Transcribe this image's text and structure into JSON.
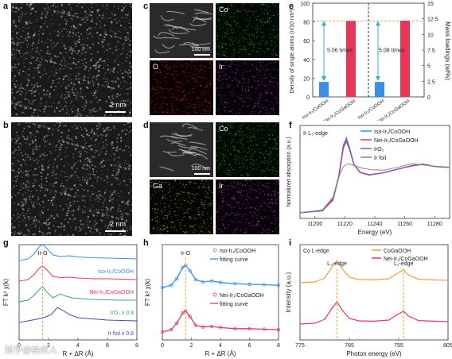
{
  "panels": {
    "a": {
      "label": "a",
      "scale": "2 nm"
    },
    "b": {
      "label": "b",
      "scale": "2 nm"
    },
    "c": {
      "label": "c",
      "scale": "100 nm",
      "tiles": [
        "",
        "Co",
        "O",
        "Ir"
      ]
    },
    "d": {
      "label": "d",
      "scale": "100 nm",
      "tiles": [
        "",
        "Co",
        "Ga",
        "Ir"
      ]
    },
    "e": {
      "label": "e",
      "ylabel_left": "Density of single atoms (n/10 nm²)",
      "ylabel_right": "Mass loadings (wt%)",
      "yticks_left": [
        "0",
        "20",
        "40",
        "60",
        "80",
        "100"
      ],
      "yticks_right": [
        "0",
        "2.5",
        "5",
        "7.5",
        "10",
        "12.5",
        "15"
      ],
      "ann_left": "5.06 times",
      "ann_right": "5.08 times",
      "xcat": [
        "Iso-Ir₁/CoOOH",
        "Nei-Ir₁/CoGaOOH",
        "Iso-Ir₁/CoOOH",
        "Nei-Ir₁/CoGaOOH"
      ]
    },
    "f": {
      "label": "f",
      "edge": "Ir L₃-edge",
      "xlabel": "Energy (eV)",
      "ylabel": "Normalized absorption (a.u.)",
      "xticks": [
        "11200",
        "11220",
        "11240",
        "11260",
        "11280"
      ],
      "legend": [
        "Iso-Ir₁/CoOOH",
        "Nei-Ir₁/CoGaOOH",
        "IrO₂",
        "Ir foil"
      ]
    },
    "g": {
      "label": "g",
      "peak": "Ir-O",
      "xlabel": "R + ΔR (Å)",
      "ylabel": "FT k³ χ(k)",
      "xticks": [
        "0",
        "2",
        "4",
        "6",
        "8"
      ],
      "curves": [
        "Iso-Ir₁/CoOOH",
        "Nei-Ir₁/CoGaOOH",
        "IrO₂ x 0.8",
        "Ir foil x 0.8"
      ]
    },
    "h": {
      "label": "h",
      "peak": "Ir-O",
      "xlabel": "R + ΔR (Å)",
      "ylabel": "FT k³ χ(k)",
      "xticks": [
        "0",
        "2",
        "4",
        "6",
        "8"
      ],
      "legend_top": [
        "Iso-Ir₁/CoOOH",
        "fitting curve"
      ],
      "legend_bottom": [
        "Nei-Ir₁/CoGaOOH",
        "fitting curve"
      ]
    },
    "i": {
      "label": "i",
      "edge": "Co L-edge",
      "l3": "L₃-edge",
      "l2": "L₂-edge",
      "xlabel": "Photon energy (eV)",
      "ylabel": "Intensity (a.u.)",
      "xticks": [
        "775",
        "785",
        "795",
        "805"
      ],
      "legend": [
        "CoGaOOH",
        "Nei-Ir₁/CoGaOOH"
      ]
    }
  },
  "watermark": "知乎@纳米人",
  "colors": {
    "blue": "#3a8ee6",
    "red": "#e8365a",
    "green": "#3aa08a",
    "purple": "#4a4aa0",
    "orange": "#e8a040",
    "gray": "#888888"
  },
  "chart_data": [
    {
      "type": "bar",
      "title": "",
      "categories": [
        "Iso-Ir₁/CoOOH",
        "Nei-Ir₁/CoGaOOH"
      ],
      "series": [
        {
          "values": [
            16,
            81
          ]
        }
      ],
      "ylabel": "Density of single atoms (n/10 nm²)",
      "ylim": [
        0,
        100
      ],
      "annotation": "5.06 times"
    },
    {
      "type": "bar",
      "title": "",
      "categories": [
        "Iso-Ir₁/CoOOH",
        "Nei-Ir₁/CoGaOOH"
      ],
      "series": [
        {
          "values": [
            2.4,
            12.2
          ]
        }
      ],
      "ylabel": "Mass loadings (wt%)",
      "ylim": [
        0,
        15
      ],
      "annotation": "5.08 times"
    },
    {
      "type": "line",
      "xlabel": "Energy (eV)",
      "ylabel": "Normalized absorption (a.u.)",
      "xlim": [
        11190,
        11290
      ],
      "series": [
        {
          "name": "Iso-Ir₁/CoOOH",
          "x": [
            11190,
            11205,
            11212,
            11216,
            11219,
            11221,
            11223,
            11226,
            11230,
            11236,
            11245,
            11255,
            11265,
            11272,
            11280,
            11290
          ],
          "y": [
            0.02,
            0.06,
            0.3,
            0.8,
            1.45,
            1.6,
            1.4,
            1.05,
            0.88,
            0.82,
            0.86,
            0.94,
            1.02,
            1.05,
            1.0,
            0.98
          ]
        },
        {
          "name": "Nei-Ir₁/CoGaOOH",
          "x": [
            11190,
            11205,
            11212,
            11216,
            11219,
            11221,
            11223,
            11226,
            11230,
            11236,
            11245,
            11255,
            11265,
            11272,
            11280,
            11290
          ],
          "y": [
            0.02,
            0.06,
            0.32,
            0.82,
            1.42,
            1.57,
            1.38,
            1.04,
            0.87,
            0.82,
            0.86,
            0.94,
            1.02,
            1.05,
            1.0,
            0.98
          ]
        },
        {
          "name": "IrO₂",
          "x": [
            11190,
            11205,
            11212,
            11216,
            11219,
            11221,
            11223,
            11226,
            11230,
            11236,
            11245,
            11255,
            11265,
            11272,
            11280,
            11290
          ],
          "y": [
            0.02,
            0.06,
            0.28,
            0.78,
            1.38,
            1.52,
            1.36,
            1.04,
            0.88,
            0.83,
            0.86,
            0.94,
            1.01,
            1.04,
            1.0,
            0.98
          ]
        },
        {
          "name": "Ir foil",
          "x": [
            11190,
            11205,
            11212,
            11216,
            11219,
            11222,
            11226,
            11232,
            11238,
            11246,
            11255,
            11265,
            11275,
            11290
          ],
          "y": [
            0.02,
            0.08,
            0.35,
            0.78,
            1.0,
            1.06,
            1.02,
            0.96,
            0.93,
            0.92,
            0.98,
            1.06,
            1.02,
            0.98
          ]
        }
      ]
    },
    {
      "type": "line",
      "xlabel": "R + ΔR (Å)",
      "ylabel": "FT k³ χ(k)",
      "xlim": [
        0,
        8
      ],
      "series": [
        {
          "name": "Iso-Ir₁/CoOOH",
          "x": [
            0,
            0.6,
            1.0,
            1.4,
            1.6,
            1.9,
            2.3,
            2.8,
            3.4,
            4,
            5,
            6,
            7,
            8
          ],
          "y": [
            0,
            0.2,
            0.8,
            1.8,
            2.0,
            1.5,
            0.7,
            0.5,
            0.6,
            0.45,
            0.35,
            0.3,
            0.25,
            0.2
          ]
        },
        {
          "name": "Nei-Ir₁/CoGaOOH",
          "x": [
            0,
            0.6,
            1.0,
            1.4,
            1.6,
            1.9,
            2.3,
            2.8,
            3.4,
            4,
            5,
            6,
            7,
            8
          ],
          "y": [
            0,
            0.2,
            0.8,
            1.7,
            1.9,
            1.4,
            0.6,
            0.45,
            0.5,
            0.4,
            0.3,
            0.3,
            0.25,
            0.2
          ]
        },
        {
          "name": "IrO₂ x 0.8",
          "x": [
            0,
            0.6,
            1.0,
            1.4,
            1.6,
            1.9,
            2.3,
            2.8,
            3.2,
            3.6,
            4.2,
            5,
            6,
            7,
            8
          ],
          "y": [
            0,
            0.2,
            0.8,
            1.6,
            1.9,
            1.2,
            0.5,
            1.0,
            0.7,
            0.5,
            0.4,
            0.3,
            0.25,
            0.2,
            0.2
          ]
        },
        {
          "name": "Ir foil x 0.8",
          "x": [
            0,
            0.6,
            1.2,
            1.8,
            2.2,
            2.6,
            3.0,
            3.4,
            4,
            5,
            6,
            7,
            8
          ],
          "y": [
            0,
            0.2,
            0.4,
            0.7,
            1.0,
            1.9,
            1.5,
            1.0,
            0.6,
            0.45,
            0.3,
            0.25,
            0.2
          ]
        }
      ]
    },
    {
      "type": "line",
      "xlabel": "Photon energy (eV)",
      "ylabel": "Intensity (a.u.)",
      "xlim": [
        775,
        805
      ],
      "series": [
        {
          "name": "CoGaOOH",
          "x": [
            775,
            778,
            780,
            781.5,
            782.5,
            783.5,
            785,
            787,
            790,
            793,
            795,
            796,
            797,
            799,
            802,
            805
          ],
          "y": [
            0.2,
            0.25,
            0.5,
            1.2,
            1.6,
            1.1,
            0.55,
            0.4,
            0.38,
            0.45,
            0.85,
            1.0,
            0.7,
            0.42,
            0.38,
            0.36
          ]
        },
        {
          "name": "Nei-Ir₁/CoGaOOH",
          "x": [
            775,
            778,
            780,
            781.5,
            782.5,
            783.5,
            785,
            787,
            790,
            793,
            795,
            796,
            797,
            799,
            802,
            805
          ],
          "y": [
            0.2,
            0.25,
            0.5,
            1.2,
            1.6,
            1.1,
            0.55,
            0.4,
            0.38,
            0.45,
            0.85,
            1.0,
            0.7,
            0.42,
            0.38,
            0.36
          ]
        }
      ]
    }
  ]
}
